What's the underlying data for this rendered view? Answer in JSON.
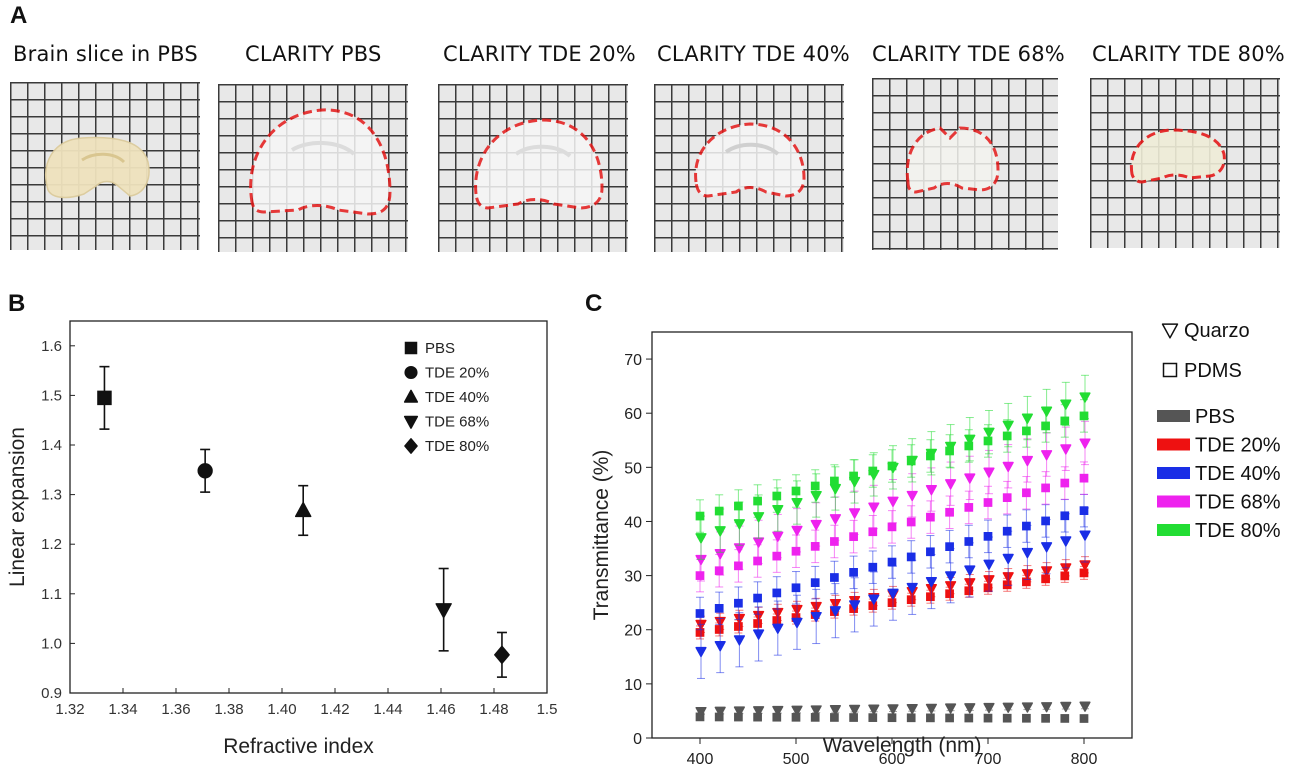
{
  "panels": {
    "a": "A",
    "b": "B",
    "c": "C"
  },
  "photos": [
    {
      "label": "Brain slice in PBS",
      "outline": false,
      "tissue": "#efe2bd"
    },
    {
      "label": "CLARITY PBS",
      "outline": true,
      "tissue": "#f3f3f3"
    },
    {
      "label": "CLARITY TDE 20%",
      "outline": true,
      "tissue": "#f3f3f3"
    },
    {
      "label": "CLARITY TDE 40%",
      "outline": true,
      "tissue": "#f3f3f3"
    },
    {
      "label": "CLARITY TDE 68%",
      "outline": true,
      "tissue": "#f0f0ec"
    },
    {
      "label": "CLARITY TDE 80%",
      "outline": true,
      "tissue": "#ecebd8"
    }
  ],
  "chart_data": [
    {
      "type": "scatter",
      "panel": "B",
      "xlabel": "Refractive index",
      "ylabel": "Linear expansion",
      "xlim": [
        1.32,
        1.5
      ],
      "ylim": [
        0.9,
        1.65
      ],
      "xticks": [
        1.32,
        1.34,
        1.36,
        1.38,
        1.4,
        1.42,
        1.44,
        1.46,
        1.48,
        1.5
      ],
      "xtick_labels": [
        "1.32",
        "1.34",
        "1.36",
        "1.38",
        "1.40",
        "1.42",
        "1.44",
        "1.46",
        "1.48",
        "1.5"
      ],
      "yticks": [
        0.9,
        1.0,
        1.1,
        1.2,
        1.3,
        1.4,
        1.5,
        1.6
      ],
      "ytick_labels": [
        "0.9",
        "1.0",
        "1.1",
        "1.2",
        "1.3",
        "1.4",
        "1.5",
        "1.6"
      ],
      "legend_position": "top-right",
      "points": [
        {
          "name": "PBS",
          "marker": "square",
          "x": 1.333,
          "y": 1.495,
          "err": 0.063
        },
        {
          "name": "TDE 20%",
          "marker": "circle",
          "x": 1.371,
          "y": 1.348,
          "err": 0.043
        },
        {
          "name": "TDE 40%",
          "marker": "triangle-up",
          "x": 1.408,
          "y": 1.268,
          "err": 0.05
        },
        {
          "name": "TDE 68%",
          "marker": "triangle-down",
          "x": 1.461,
          "y": 1.068,
          "err": 0.083
        },
        {
          "name": "TDE 80%",
          "marker": "diamond",
          "x": 1.483,
          "y": 0.977,
          "err": 0.045
        }
      ]
    },
    {
      "type": "scatter",
      "panel": "C",
      "xlabel": "Wavelength (nm)",
      "ylabel": "Transmittance (%)",
      "xlim": [
        350,
        850
      ],
      "ylim": [
        0,
        75
      ],
      "xticks": [
        400,
        500,
        600,
        700,
        800
      ],
      "xtick_labels": [
        "400",
        "500",
        "600",
        "700",
        "800"
      ],
      "yticks": [
        0,
        10,
        20,
        30,
        40,
        50,
        60,
        70
      ],
      "ytick_labels": [
        "0",
        "10",
        "20",
        "30",
        "40",
        "50",
        "60",
        "70"
      ],
      "legend_position": "right",
      "marker_legend": [
        {
          "label": "Quarzo",
          "marker": "triangle-down-open"
        },
        {
          "label": "PDMS",
          "marker": "square-open"
        }
      ],
      "x": [
        400,
        420,
        440,
        460,
        480,
        500,
        520,
        540,
        560,
        580,
        600,
        620,
        640,
        660,
        680,
        700,
        720,
        740,
        760,
        780,
        800
      ],
      "series": [
        {
          "name": "PBS",
          "color": "#555555",
          "quarzo": {
            "start": 4.9,
            "end": 5.9,
            "err": 0.5
          },
          "pdms": {
            "start": 3.9,
            "end": 3.6,
            "err": 0.4
          }
        },
        {
          "name": "TDE 20%",
          "color": "#ee1111",
          "quarzo": {
            "start": 21,
            "end": 32,
            "err": 1.5
          },
          "pdms": {
            "start": 19.5,
            "end": 30.5,
            "err": 1.2
          }
        },
        {
          "name": "TDE 40%",
          "color": "#1a2ee6",
          "quarzo": {
            "start": 16,
            "end": 37.5,
            "err": 5
          },
          "pdms": {
            "start": 23,
            "end": 42,
            "err": 3
          }
        },
        {
          "name": "TDE 68%",
          "color": "#ee22ee",
          "quarzo": {
            "start": 33,
            "end": 54.5,
            "err": 4
          },
          "pdms": {
            "start": 30,
            "end": 48,
            "err": 3
          }
        },
        {
          "name": "TDE 80%",
          "color": "#22dd33",
          "quarzo": {
            "start": 37,
            "end": 63,
            "err": 4
          },
          "pdms": {
            "start": 41,
            "end": 59.5,
            "err": 3
          }
        }
      ]
    }
  ]
}
